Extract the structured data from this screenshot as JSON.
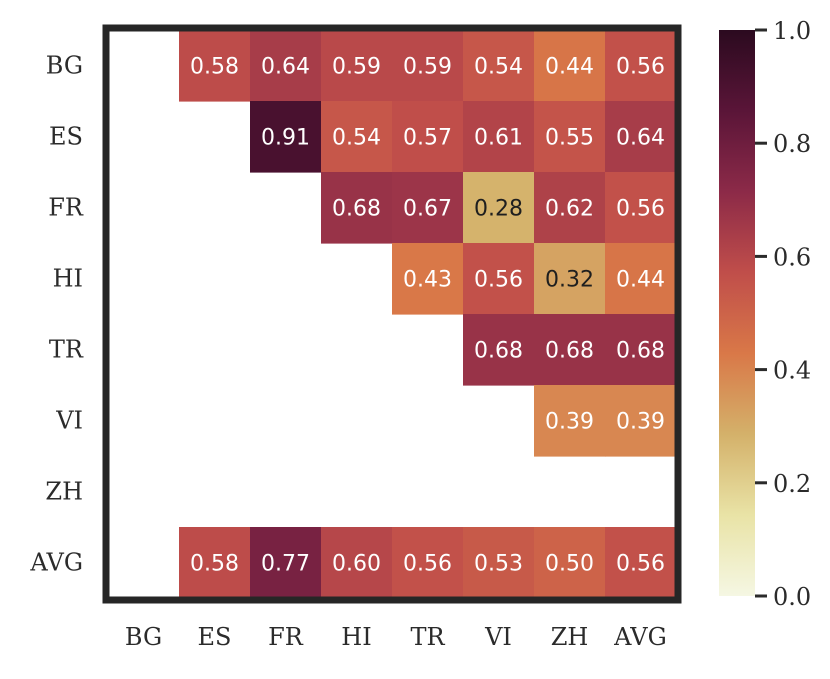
{
  "chart_data": {
    "type": "heatmap",
    "rows": [
      "BG",
      "ES",
      "FR",
      "HI",
      "TR",
      "VI",
      "ZH",
      "AVG"
    ],
    "columns": [
      "BG",
      "ES",
      "FR",
      "HI",
      "TR",
      "VI",
      "ZH",
      "AVG"
    ],
    "values": [
      [
        null,
        0.58,
        0.64,
        0.59,
        0.59,
        0.54,
        0.44,
        0.56
      ],
      [
        null,
        null,
        0.91,
        0.54,
        0.57,
        0.61,
        0.55,
        0.64
      ],
      [
        null,
        null,
        null,
        0.68,
        0.67,
        0.28,
        0.62,
        0.56
      ],
      [
        null,
        null,
        null,
        null,
        0.43,
        0.56,
        0.32,
        0.44
      ],
      [
        null,
        null,
        null,
        null,
        null,
        0.68,
        0.68,
        0.68
      ],
      [
        null,
        null,
        null,
        null,
        null,
        null,
        0.39,
        0.39
      ],
      [
        null,
        null,
        null,
        null,
        null,
        null,
        null,
        null
      ],
      [
        null,
        0.58,
        0.77,
        0.6,
        0.56,
        0.53,
        0.5,
        0.56
      ]
    ],
    "value_labels": [
      [
        null,
        "0.58",
        "0.64",
        "0.59",
        "0.59",
        "0.54",
        "0.44",
        "0.56"
      ],
      [
        null,
        null,
        "0.91",
        "0.54",
        "0.57",
        "0.61",
        "0.55",
        "0.64"
      ],
      [
        null,
        null,
        null,
        "0.68",
        "0.67",
        "0.28",
        "0.62",
        "0.56"
      ],
      [
        null,
        null,
        null,
        null,
        "0.43",
        "0.56",
        "0.32",
        "0.44"
      ],
      [
        null,
        null,
        null,
        null,
        null,
        "0.68",
        "0.68",
        "0.68"
      ],
      [
        null,
        null,
        null,
        null,
        null,
        null,
        "0.39",
        "0.39"
      ],
      [
        null,
        null,
        null,
        null,
        null,
        null,
        null,
        null
      ],
      [
        null,
        "0.58",
        "0.77",
        "0.60",
        "0.56",
        "0.53",
        "0.50",
        "0.56"
      ]
    ],
    "colorbar": {
      "min": 0.0,
      "max": 1.0,
      "ticks": [
        0.0,
        0.2,
        0.4,
        0.6,
        0.8,
        1.0
      ],
      "tick_labels": [
        "0.0",
        "0.2",
        "0.4",
        "0.6",
        "0.8",
        "1.0"
      ],
      "colormap_stops": [
        "#f5f7e3",
        "#e9e3a6",
        "#d4b16a",
        "#d97848",
        "#c04e4a",
        "#8c2a48",
        "#5a1538",
        "#2b0a1f"
      ]
    },
    "colors": {
      "frame": "#262626",
      "tick": "#2b2b2b",
      "text_dark": "#1f1f1f",
      "text_light": "#ffffff"
    },
    "title": "",
    "xlabel": "",
    "ylabel": ""
  }
}
